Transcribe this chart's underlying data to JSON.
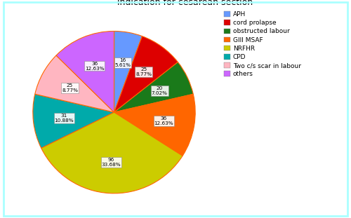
{
  "title": "indication for cesarean section",
  "labels": [
    "APH",
    "cord prolapse",
    "obstructed labour",
    "GlII MSAF",
    "NRFHR",
    "CPD",
    "Two c/s scar in labour",
    "others"
  ],
  "values": [
    16,
    25,
    20,
    36,
    96,
    31,
    25,
    36
  ],
  "percentages": [
    "5.61%",
    "8.77%",
    "7.02%",
    "12.63%",
    "33.68%",
    "10.88%",
    "8.77%",
    "12.63%"
  ],
  "colors": [
    "#6699FF",
    "#DD0000",
    "#1A7A1A",
    "#FF6600",
    "#CCCC00",
    "#00AAAA",
    "#FFB6C1",
    "#CC66FF"
  ],
  "legend_labels": [
    "APH",
    "cord prolapse",
    "obstructed labour",
    "GlII MSAF",
    "NRFHR",
    "CPD",
    "Two c/s scar in labour",
    "others"
  ],
  "figsize": [
    5.0,
    3.11
  ],
  "dpi": 100,
  "bg_color": "#FFFFFF",
  "border_color": "#AAFFFF",
  "title_fontsize": 9,
  "label_fontsize": 5.5,
  "legend_fontsize": 6.5
}
